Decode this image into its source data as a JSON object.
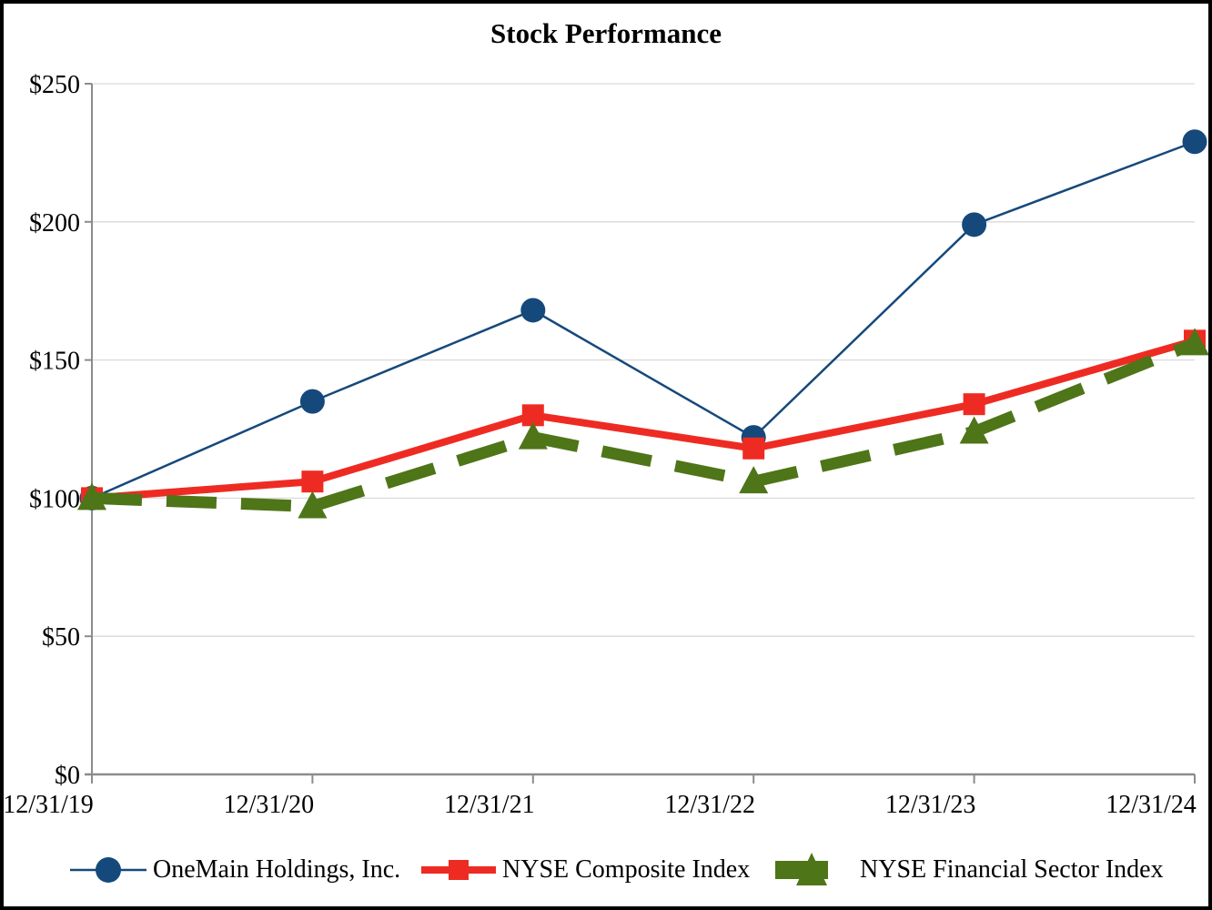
{
  "chart_data": {
    "type": "line",
    "title": "Stock Performance",
    "categories": [
      "12/31/19",
      "12/31/20",
      "12/31/21",
      "12/31/22",
      "12/31/23",
      "12/31/24"
    ],
    "series": [
      {
        "name": "OneMain Holdings, Inc.",
        "values": [
          100,
          135,
          168,
          122,
          199,
          229
        ],
        "color": "#15497B",
        "marker": "circle",
        "line_style": "solid",
        "line_width": 2.5
      },
      {
        "name": "NYSE Composite Index",
        "values": [
          100,
          106,
          130,
          118,
          134,
          157
        ],
        "color": "#EE2B23",
        "marker": "square",
        "line_style": "solid",
        "line_width": 8
      },
      {
        "name": "NYSE Financial Sector Index",
        "values": [
          100,
          97,
          122,
          106,
          124,
          156
        ],
        "color": "#4E7518",
        "marker": "triangle",
        "line_style": "dashed",
        "dash_pattern": "55 27",
        "line_width": 13
      }
    ],
    "xlabel": "",
    "ylabel": "",
    "ylim": [
      0,
      250
    ],
    "y_ticks": {
      "values": [
        0,
        50,
        100,
        150,
        200,
        250
      ],
      "labels": [
        "$0",
        "$50",
        "$100",
        "$150",
        "$200",
        "$250"
      ]
    },
    "grid": true,
    "legend_position": "bottom",
    "axis_color": "#8C8C8C",
    "gridline_color": "#D9D9D9"
  }
}
